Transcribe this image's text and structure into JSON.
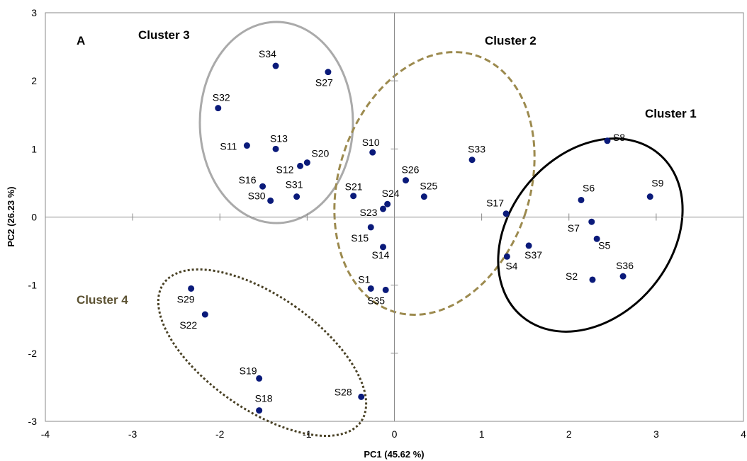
{
  "chart_data": {
    "type": "scatter",
    "panel_label": "A",
    "xlabel": "PC1 (45.62 %)",
    "ylabel": "PC2 (26.23 %)",
    "xlim": [
      -4,
      4
    ],
    "ylim": [
      -3,
      3
    ],
    "x_ticks": [
      "-4",
      "-3",
      "-2",
      "-1",
      "0",
      "1",
      "2",
      "3",
      "4"
    ],
    "y_ticks": [
      "3",
      "2",
      "1",
      "0",
      "-1",
      "-2",
      "-3"
    ],
    "grid": false,
    "point_color": "#0a1a7a",
    "points": [
      {
        "label": "S1",
        "x": -0.27,
        "y": -1.05
      },
      {
        "label": "S2",
        "x": 2.27,
        "y": -0.92
      },
      {
        "label": "S4",
        "x": 1.29,
        "y": -0.58
      },
      {
        "label": "S5",
        "x": 2.32,
        "y": -0.32
      },
      {
        "label": "S6",
        "x": 2.14,
        "y": 0.25
      },
      {
        "label": "S7",
        "x": 2.26,
        "y": -0.07
      },
      {
        "label": "S8",
        "x": 2.44,
        "y": 1.12
      },
      {
        "label": "S9",
        "x": 2.93,
        "y": 0.3
      },
      {
        "label": "S10",
        "x": -0.25,
        "y": 0.95
      },
      {
        "label": "S11",
        "x": -1.69,
        "y": 1.05
      },
      {
        "label": "S12",
        "x": -1.08,
        "y": 0.75
      },
      {
        "label": "S13",
        "x": -1.36,
        "y": 1.0
      },
      {
        "label": "S14",
        "x": -0.13,
        "y": -0.44
      },
      {
        "label": "S15",
        "x": -0.27,
        "y": -0.15
      },
      {
        "label": "S16",
        "x": -1.51,
        "y": 0.45
      },
      {
        "label": "S17",
        "x": 1.28,
        "y": 0.05
      },
      {
        "label": "S18",
        "x": -1.55,
        "y": -2.84
      },
      {
        "label": "S19",
        "x": -1.55,
        "y": -2.37
      },
      {
        "label": "S20",
        "x": -1.0,
        "y": 0.8
      },
      {
        "label": "S21",
        "x": -0.47,
        "y": 0.31
      },
      {
        "label": "S22",
        "x": -2.17,
        "y": -1.43
      },
      {
        "label": "S23",
        "x": -0.13,
        "y": 0.12
      },
      {
        "label": "S24",
        "x": -0.08,
        "y": 0.19
      },
      {
        "label": "S25",
        "x": 0.34,
        "y": 0.3
      },
      {
        "label": "S26",
        "x": 0.13,
        "y": 0.54
      },
      {
        "label": "S27",
        "x": -0.76,
        "y": 2.13
      },
      {
        "label": "S28",
        "x": -0.38,
        "y": -2.64
      },
      {
        "label": "S29",
        "x": -2.33,
        "y": -1.05
      },
      {
        "label": "S30",
        "x": -1.42,
        "y": 0.24
      },
      {
        "label": "S31",
        "x": -1.12,
        "y": 0.3
      },
      {
        "label": "S32",
        "x": -2.02,
        "y": 1.6
      },
      {
        "label": "S33",
        "x": 0.89,
        "y": 0.84
      },
      {
        "label": "S34",
        "x": -1.36,
        "y": 2.22
      },
      {
        "label": "S35",
        "x": -0.1,
        "y": -1.07
      },
      {
        "label": "S36",
        "x": 2.62,
        "y": -0.87
      },
      {
        "label": "S37",
        "x": 1.54,
        "y": -0.42
      }
    ],
    "clusters": [
      {
        "name": "Cluster 1",
        "color": "#000000",
        "style": "solid"
      },
      {
        "name": "Cluster 2",
        "color": "#9c8a4e",
        "style": "dashed"
      },
      {
        "name": "Cluster 3",
        "color": "#aaaaaa",
        "style": "solid"
      },
      {
        "name": "Cluster 4",
        "color": "#4a4226",
        "style": "dotted"
      }
    ]
  }
}
